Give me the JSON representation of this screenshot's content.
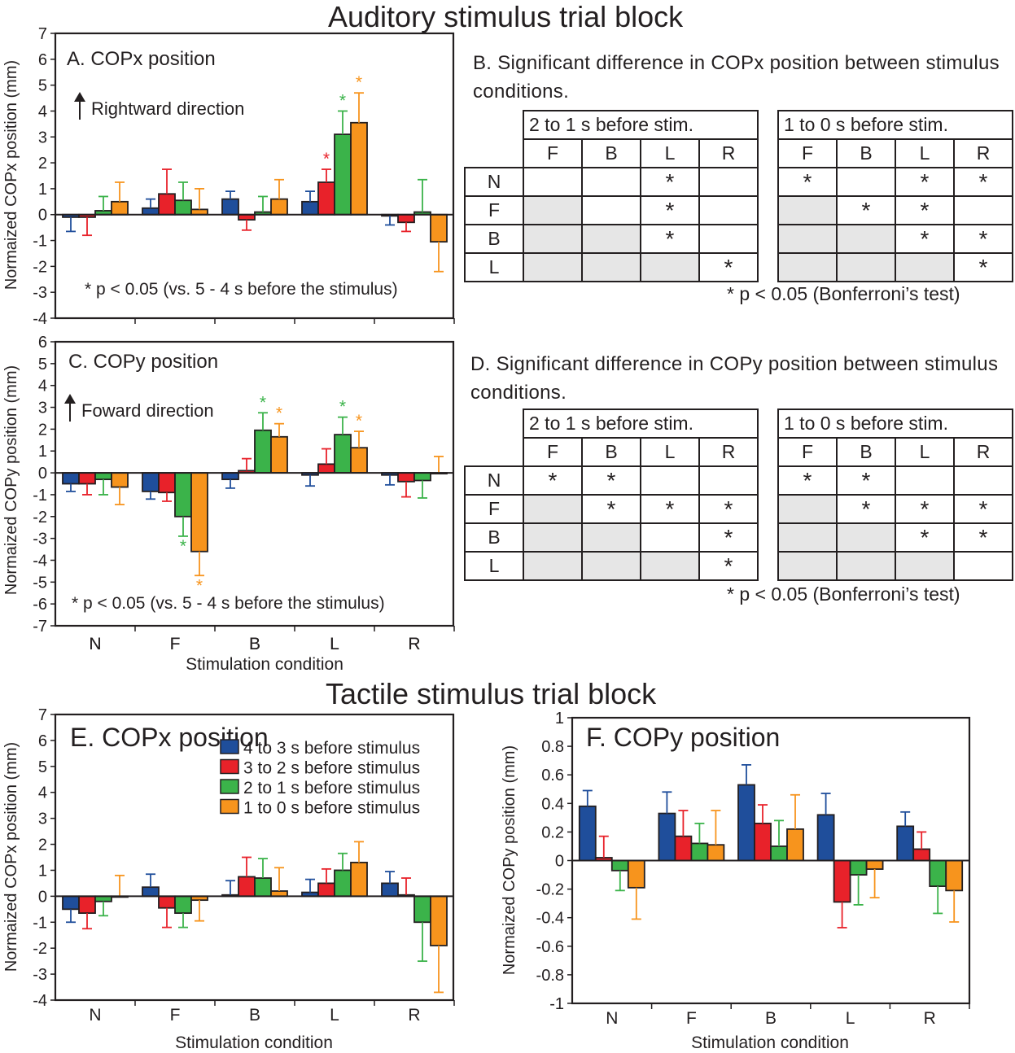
{
  "titles": {
    "auditory": "Auditory stimulus trial block",
    "tactile": "Tactile stimulus trial block"
  },
  "colors": {
    "series": [
      "#1f4e9b",
      "#e8222a",
      "#3bb34a",
      "#f7941d"
    ],
    "text": "#231f20",
    "shade": "#e6e6e6"
  },
  "series_names": [
    "4 to 3 s before stimulus",
    "3 to 2 s before stimulus",
    "2 to 1 s before stimulus",
    "1 to 0 s before stimulus"
  ],
  "chart_data": [
    {
      "id": "A",
      "type": "bar",
      "title": "A. COPx position",
      "direction_note": "Rightward direction",
      "footnote": "* p < 0.05 (vs. 5 - 4 s before the stimulus)",
      "ylabel": "Normaized COPx position (mm)",
      "xlabel": "",
      "ylim": [
        -4,
        7
      ],
      "yticks": [
        7,
        6,
        5,
        4,
        3,
        2,
        1,
        0,
        -1,
        -2,
        -3,
        -4
      ],
      "categories": [
        "N",
        "F",
        "B",
        "L",
        "R"
      ],
      "series": [
        {
          "name": "4 to 3 s before stimulus",
          "values": [
            -0.1,
            0.25,
            0.6,
            0.5,
            -0.05
          ],
          "errors": [
            0.55,
            0.35,
            0.3,
            0.4,
            0.35
          ],
          "sig": [
            false,
            false,
            false,
            false,
            false
          ]
        },
        {
          "name": "3 to 2 s before stimulus",
          "values": [
            -0.1,
            0.8,
            -0.2,
            1.25,
            -0.3
          ],
          "errors": [
            0.7,
            0.95,
            0.4,
            0.5,
            0.35
          ],
          "sig": [
            false,
            false,
            false,
            true,
            false
          ]
        },
        {
          "name": "2 to 1 s before stimulus",
          "values": [
            0.15,
            0.55,
            0.1,
            3.1,
            0.1
          ],
          "errors": [
            0.55,
            0.7,
            0.6,
            0.9,
            1.25
          ],
          "sig": [
            false,
            false,
            false,
            true,
            false
          ]
        },
        {
          "name": "1 to 0 s before stimulus",
          "values": [
            0.5,
            0.2,
            0.6,
            3.55,
            -1.05
          ],
          "errors": [
            0.75,
            0.8,
            0.75,
            1.15,
            1.15
          ],
          "sig": [
            false,
            false,
            false,
            true,
            false
          ]
        }
      ]
    },
    {
      "id": "C",
      "type": "bar",
      "title": "C. COPy position",
      "direction_note": "Foward direction",
      "footnote": "* p < 0.05 (vs. 5 - 4 s before the stimulus)",
      "ylabel": "Normaized COPy position (mm)",
      "xlabel": "Stimulation condition",
      "ylim": [
        -7,
        6
      ],
      "yticks": [
        6,
        5,
        4,
        3,
        2,
        1,
        0,
        -1,
        -2,
        -3,
        -4,
        -5,
        -6,
        -7
      ],
      "categories": [
        "N",
        "F",
        "B",
        "L",
        "R"
      ],
      "series": [
        {
          "name": "4 to 3 s before stimulus",
          "values": [
            -0.5,
            -0.85,
            -0.3,
            -0.1,
            -0.1
          ],
          "errors": [
            0.35,
            0.35,
            0.4,
            0.5,
            0.45
          ],
          "sig": [
            false,
            false,
            false,
            false,
            false
          ]
        },
        {
          "name": "3 to 2 s before stimulus",
          "values": [
            -0.5,
            -0.9,
            0.1,
            0.4,
            -0.4
          ],
          "errors": [
            0.5,
            0.4,
            0.55,
            0.7,
            0.7
          ],
          "sig": [
            false,
            false,
            false,
            false,
            false
          ]
        },
        {
          "name": "2 to 1 s before stimulus",
          "values": [
            -0.3,
            -2.0,
            1.95,
            1.75,
            -0.35
          ],
          "errors": [
            0.7,
            0.9,
            0.8,
            0.8,
            0.8
          ],
          "sig": [
            false,
            true,
            true,
            true,
            false
          ]
        },
        {
          "name": "1 to 0 s before stimulus",
          "values": [
            -0.65,
            -3.6,
            1.65,
            1.15,
            0.0
          ],
          "errors": [
            0.8,
            1.1,
            0.6,
            0.75,
            0.75
          ],
          "sig": [
            false,
            true,
            true,
            true,
            false
          ]
        }
      ]
    },
    {
      "id": "E",
      "type": "bar",
      "title": "E. COPx position",
      "ylabel": "Normaized COPx position (mm)",
      "xlabel": "Stimulation condition",
      "ylim": [
        -4,
        7
      ],
      "yticks": [
        7,
        6,
        5,
        4,
        3,
        2,
        1,
        0,
        -1,
        -2,
        -3,
        -4
      ],
      "categories": [
        "N",
        "F",
        "B",
        "L",
        "R"
      ],
      "series": [
        {
          "name": "4 to 3 s before stimulus",
          "values": [
            -0.5,
            0.35,
            0.05,
            0.15,
            0.5
          ],
          "errors": [
            0.5,
            0.5,
            0.55,
            0.5,
            0.45
          ],
          "sig": [
            false,
            false,
            false,
            false,
            false
          ]
        },
        {
          "name": "3 to 2 s before stimulus",
          "values": [
            -0.65,
            -0.45,
            0.75,
            0.5,
            0.05
          ],
          "errors": [
            0.6,
            0.75,
            0.75,
            0.55,
            0.65
          ],
          "sig": [
            false,
            false,
            false,
            false,
            false
          ]
        },
        {
          "name": "2 to 1 s before stimulus",
          "values": [
            -0.2,
            -0.65,
            0.7,
            1.0,
            -1.0
          ],
          "errors": [
            0.55,
            0.55,
            0.75,
            0.65,
            1.5
          ],
          "sig": [
            false,
            false,
            false,
            false,
            false
          ]
        },
        {
          "name": "1 to 0 s before stimulus",
          "values": [
            0.0,
            -0.15,
            0.2,
            1.3,
            -1.9
          ],
          "errors": [
            0.8,
            0.8,
            0.9,
            0.8,
            1.8
          ],
          "sig": [
            false,
            false,
            false,
            false,
            false
          ]
        }
      ]
    },
    {
      "id": "F",
      "type": "bar",
      "title": "F. COPy position",
      "ylabel": "Normaized COPy position (mm)",
      "xlabel": "Stimulation condition",
      "ylim": [
        -1,
        1
      ],
      "yticks": [
        "1",
        "0.8",
        "0.6",
        "0.4",
        "0.2",
        "0",
        "-0.2",
        "-0.4",
        "-0.6",
        "-0.8",
        "-1"
      ],
      "categories": [
        "N",
        "F",
        "B",
        "L",
        "R"
      ],
      "series": [
        {
          "name": "4 to 3 s before stimulus",
          "values": [
            0.38,
            0.33,
            0.53,
            0.32,
            0.24
          ],
          "errors": [
            0.11,
            0.15,
            0.14,
            0.15,
            0.1
          ],
          "sig": [
            false,
            false,
            false,
            false,
            false
          ]
        },
        {
          "name": "3 to 2 s before stimulus",
          "values": [
            0.02,
            0.17,
            0.26,
            -0.29,
            0.08
          ],
          "errors": [
            0.15,
            0.18,
            0.13,
            0.18,
            0.12
          ],
          "sig": [
            false,
            false,
            false,
            false,
            false
          ]
        },
        {
          "name": "2 to 1 s before stimulus",
          "values": [
            -0.07,
            0.12,
            0.1,
            -0.1,
            -0.18
          ],
          "errors": [
            0.14,
            0.14,
            0.18,
            0.21,
            0.19
          ],
          "sig": [
            false,
            false,
            false,
            false,
            false
          ]
        },
        {
          "name": "1 to 0 s before stimulus",
          "values": [
            -0.19,
            0.11,
            0.22,
            -0.06,
            -0.21
          ],
          "errors": [
            0.22,
            0.24,
            0.24,
            0.2,
            0.22
          ],
          "sig": [
            false,
            false,
            false,
            false,
            false
          ]
        }
      ]
    }
  ],
  "tables": {
    "B": {
      "caption": "B. Significant difference in COPx position between stimulus conditions.",
      "note": "* p < 0.05 (Bonferroni’s test)",
      "left_header": "2 to 1 s before stim.",
      "right_header": "1 to 0 s before stim.",
      "columns": [
        "F",
        "B",
        "L",
        "R"
      ],
      "rows": [
        "N",
        "F",
        "B",
        "L"
      ],
      "left": [
        [
          "",
          "",
          "*",
          ""
        ],
        [
          "",
          "",
          "*",
          ""
        ],
        [
          "",
          "",
          "*",
          ""
        ],
        [
          "",
          "",
          "",
          "*"
        ]
      ],
      "right": [
        [
          "*",
          "",
          "*",
          "*"
        ],
        [
          "",
          "*",
          "*",
          ""
        ],
        [
          "",
          "",
          "*",
          "*"
        ],
        [
          "",
          "",
          "",
          "*"
        ]
      ]
    },
    "D": {
      "caption": "D. Significant difference in COPy position between stimulus conditions.",
      "note": "* p < 0.05 (Bonferroni’s test)",
      "left_header": "2 to 1 s before stim.",
      "right_header": "1 to 0 s before stim.",
      "columns": [
        "F",
        "B",
        "L",
        "R"
      ],
      "rows": [
        "N",
        "F",
        "B",
        "L"
      ],
      "left": [
        [
          "*",
          "*",
          "",
          ""
        ],
        [
          "",
          "*",
          "*",
          "*"
        ],
        [
          "",
          "",
          "",
          "*"
        ],
        [
          "",
          "",
          "",
          "*"
        ]
      ],
      "right": [
        [
          "*",
          "*",
          "",
          ""
        ],
        [
          "",
          "*",
          "*",
          "*"
        ],
        [
          "",
          "",
          "*",
          "*"
        ],
        [
          "",
          "",
          "",
          ""
        ]
      ]
    }
  }
}
